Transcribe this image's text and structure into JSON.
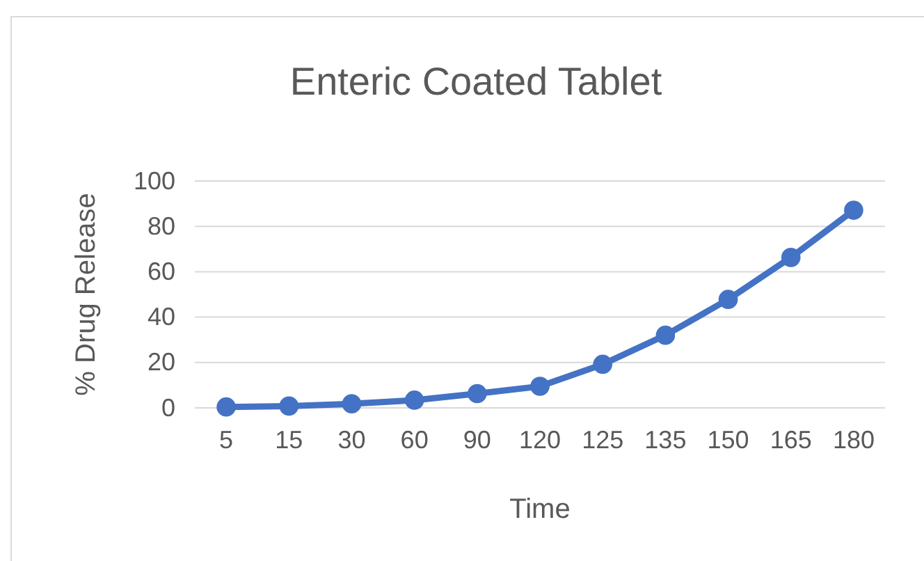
{
  "chart_data": {
    "type": "line",
    "title": "Enteric Coated Tablet",
    "xlabel": "Time",
    "ylabel": "% Drug Release",
    "categories": [
      "5",
      "15",
      "30",
      "60",
      "90",
      "120",
      "125",
      "135",
      "150",
      "165",
      "180"
    ],
    "series": [
      {
        "color": "#4472c4",
        "values": [
          0.4,
          0.8,
          1.8,
          3.4,
          6.3,
          9.5,
          19.2,
          32,
          47.8,
          66.3,
          87.1
        ]
      }
    ],
    "ylim": [
      0,
      100
    ],
    "yticks": [
      0,
      20,
      40,
      60,
      80,
      100
    ],
    "grid": "y",
    "marker": "circle",
    "line_style": "solid"
  }
}
